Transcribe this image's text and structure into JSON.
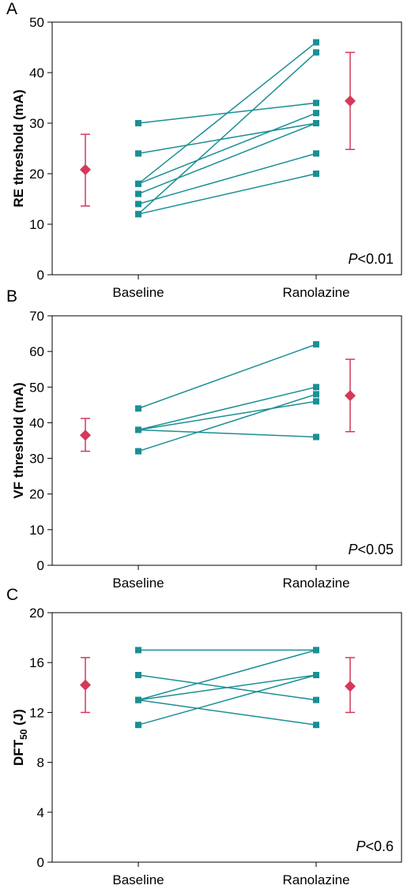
{
  "colors": {
    "line": "#1a8f94",
    "marker": "#1a8f94",
    "error": "#d6385a",
    "axis": "#000000"
  },
  "chart_data": [
    {
      "panel": "A",
      "type": "line",
      "ylabel": "RE threshold (mA)",
      "ylabel_sub": "",
      "ylabel_after": "",
      "categories": [
        "Baseline",
        "Ranolazine"
      ],
      "ylim": [
        0,
        50
      ],
      "yticks": [
        0,
        10,
        20,
        30,
        40,
        50
      ],
      "pairs": [
        [
          30,
          34
        ],
        [
          24,
          30
        ],
        [
          18,
          32
        ],
        [
          18,
          46
        ],
        [
          16,
          30
        ],
        [
          14,
          24
        ],
        [
          12,
          20
        ],
        [
          12,
          44
        ]
      ],
      "summary": [
        {
          "group": "Baseline",
          "mean": 20.8,
          "low": 13.6,
          "high": 27.8
        },
        {
          "group": "Ranolazine",
          "mean": 34.4,
          "low": 24.8,
          "high": 44.0
        }
      ],
      "p_prefix": "P",
      "p_text": "<0.01"
    },
    {
      "panel": "B",
      "type": "line",
      "ylabel": "VF threshold (mA)",
      "ylabel_sub": "",
      "ylabel_after": "",
      "categories": [
        "Baseline",
        "Ranolazine"
      ],
      "ylim": [
        0,
        70
      ],
      "yticks": [
        0,
        10,
        20,
        30,
        40,
        50,
        60,
        70
      ],
      "pairs": [
        [
          44,
          62
        ],
        [
          38,
          50
        ],
        [
          38,
          46
        ],
        [
          38,
          36
        ],
        [
          32,
          48
        ]
      ],
      "summary": [
        {
          "group": "Baseline",
          "mean": 36.5,
          "low": 32,
          "high": 41.2
        },
        {
          "group": "Ranolazine",
          "mean": 47.6,
          "low": 37.5,
          "high": 57.8
        }
      ],
      "p_prefix": "P",
      "p_text": "<0.05"
    },
    {
      "panel": "C",
      "type": "line",
      "ylabel": "DFT",
      "ylabel_sub": "50",
      "ylabel_after": " (J)",
      "categories": [
        "Baseline",
        "Ranolazine"
      ],
      "ylim": [
        0,
        20
      ],
      "yticks": [
        0,
        4,
        8,
        12,
        16,
        20
      ],
      "pairs": [
        [
          17,
          17
        ],
        [
          15,
          13
        ],
        [
          13,
          15
        ],
        [
          13,
          11
        ],
        [
          13,
          17
        ],
        [
          11,
          15
        ]
      ],
      "summary": [
        {
          "group": "Baseline",
          "mean": 14.2,
          "low": 12,
          "high": 16.4
        },
        {
          "group": "Ranolazine",
          "mean": 14.1,
          "low": 12,
          "high": 16.4
        }
      ],
      "p_prefix": "P",
      "p_text": "<0.6"
    }
  ]
}
